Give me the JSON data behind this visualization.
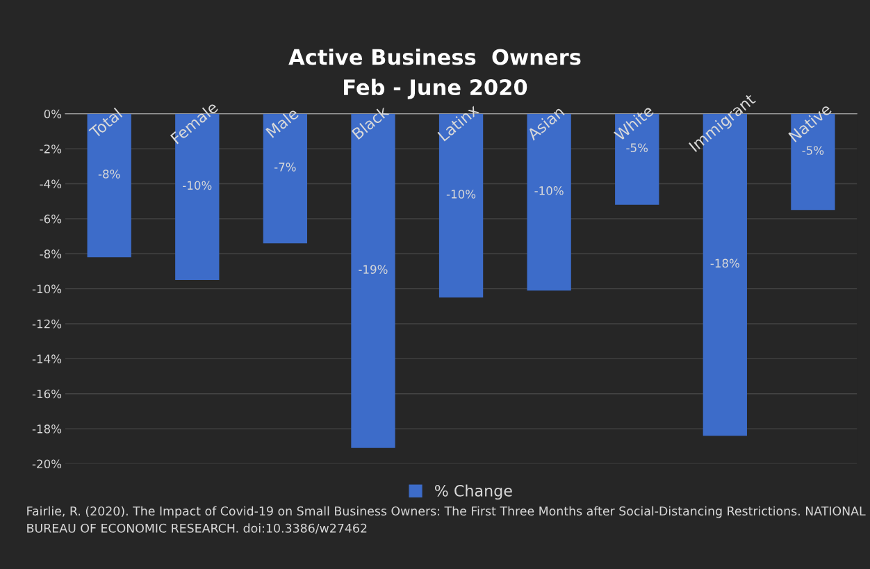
{
  "chart_data": {
    "type": "bar",
    "title": "Active Business  Owners\nFeb - June 2020",
    "categories": [
      "Total",
      "Female",
      "Male",
      "Black",
      "Latinx",
      "Asian",
      "White",
      "Immigrant",
      "Native"
    ],
    "series": [
      {
        "name": "% Change",
        "color": "#3d6cc9",
        "values": [
          -8.2,
          -9.5,
          -7.4,
          -19.1,
          -10.5,
          -10.1,
          -5.2,
          -18.4,
          -5.5
        ],
        "value_labels": [
          "-8%",
          "-10%",
          "-7%",
          "-19%",
          "-10%",
          "-10%",
          "-5%",
          "-18%",
          "-5%"
        ]
      }
    ],
    "ylim": [
      -20,
      0
    ],
    "yticks": [
      {
        "value": 0,
        "label": "0%"
      },
      {
        "value": -2,
        "label": "-2%"
      },
      {
        "value": -4,
        "label": "-4%"
      },
      {
        "value": -6,
        "label": "-6%"
      },
      {
        "value": -8,
        "label": "-8%"
      },
      {
        "value": -10,
        "label": "-10%"
      },
      {
        "value": -12,
        "label": "-12%"
      },
      {
        "value": -14,
        "label": "-14%"
      },
      {
        "value": -16,
        "label": "-16%"
      },
      {
        "value": -18,
        "label": "-18%"
      },
      {
        "value": -20,
        "label": "-20%"
      }
    ],
    "grid": "y",
    "legend": "bottom",
    "annotations": [
      "Fairlie, R. (2020). The Impact of Covid-19 on Small Business Owners: The First Three Months after Social-Distancing Restrictions. NATIONAL BUREAU OF ECONOMIC RESEARCH. doi:10.3386/w27462"
    ]
  }
}
